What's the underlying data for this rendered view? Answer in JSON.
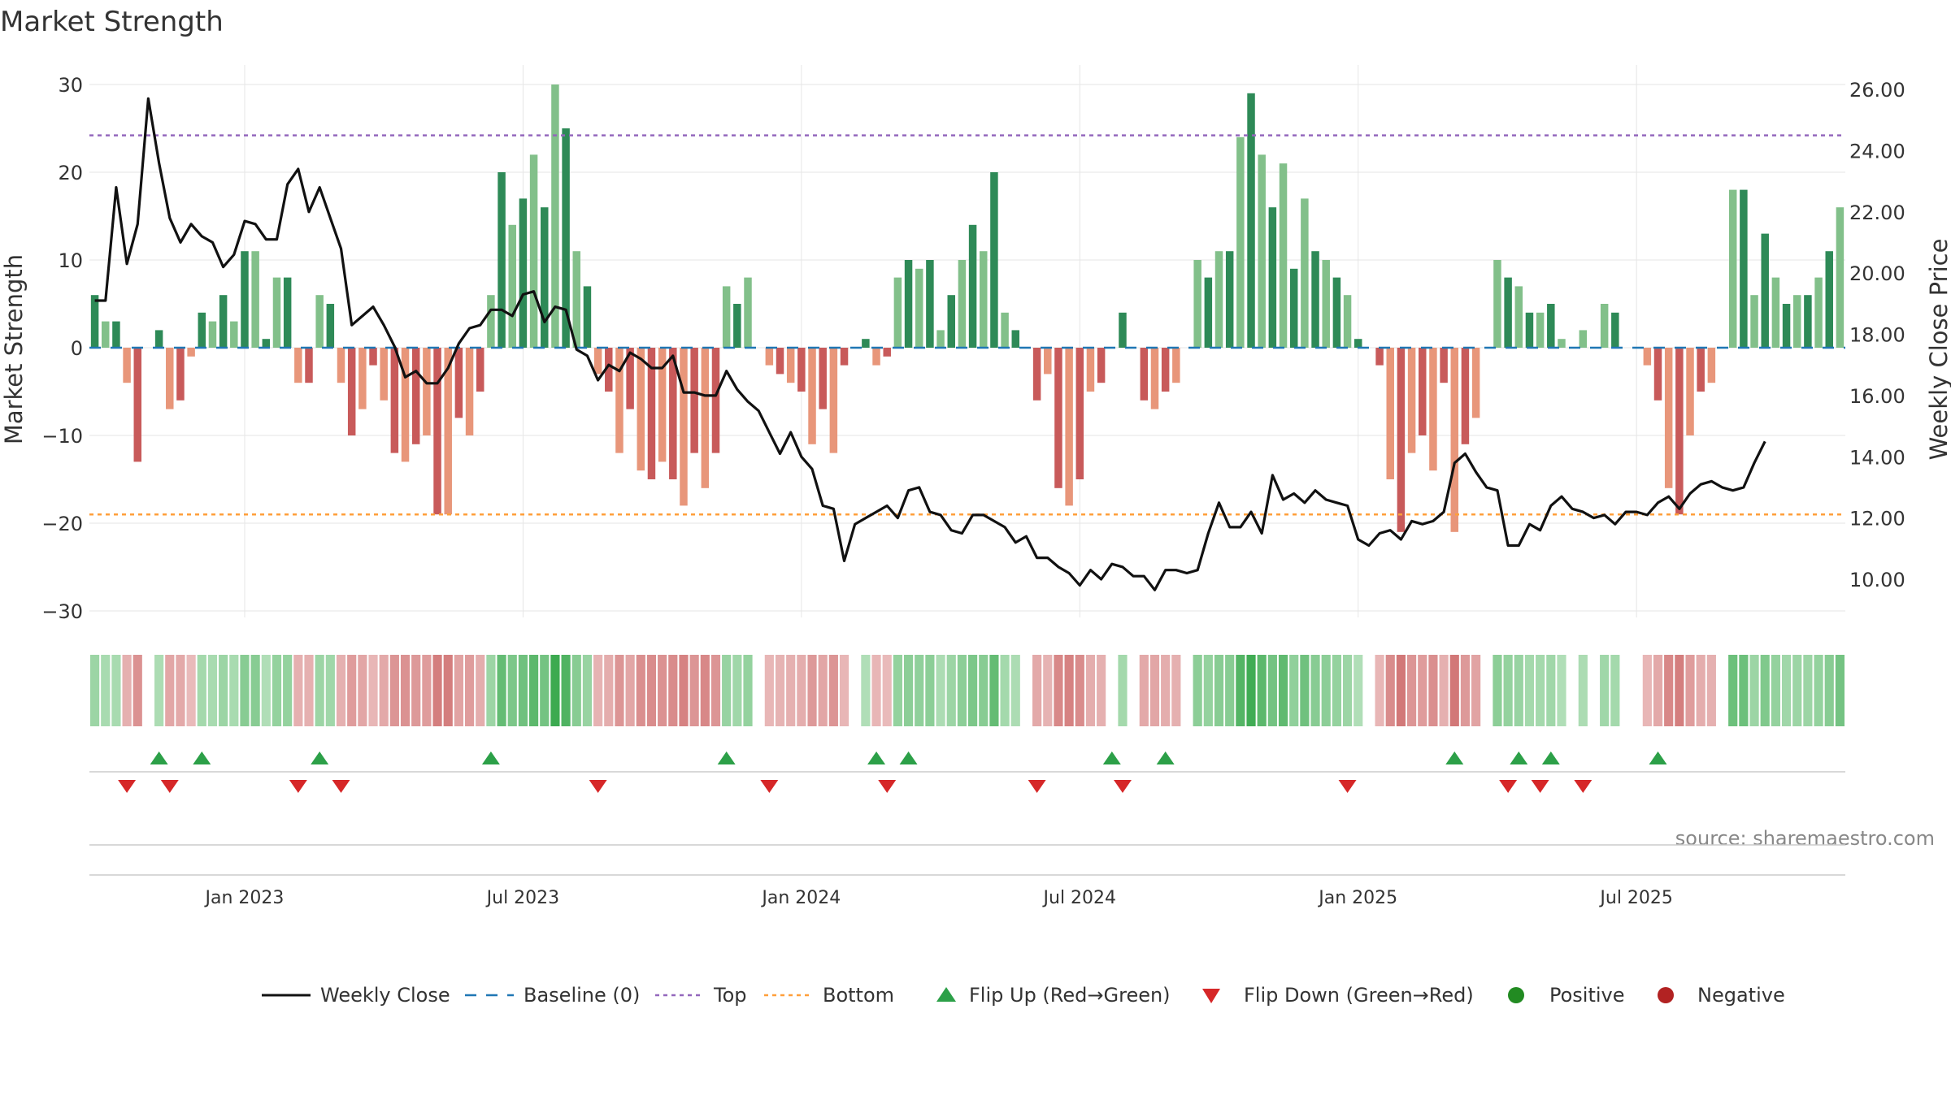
{
  "chart_data": {
    "type": "bar",
    "title": "Market Strength",
    "ylabel": "Market Strength",
    "y2label": "Weekly Close Price",
    "ylim": [
      -32,
      32
    ],
    "y2lim": [
      8.95,
      26.45
    ],
    "yticks": [
      -30,
      -20,
      -10,
      0,
      10,
      20,
      30
    ],
    "ytick_labels": [
      "−30",
      "−20",
      "−10",
      "0",
      "10",
      "20",
      "30"
    ],
    "y2ticks": [
      10,
      12,
      14,
      16,
      18,
      20,
      22,
      24,
      26
    ],
    "y2tick_labels": [
      "10.00",
      "12.00",
      "14.00",
      "16.00",
      "18.00",
      "20.00",
      "22.00",
      "24.00",
      "26.00"
    ],
    "top_level": 24.2,
    "bottom_level": -19,
    "xticks": [
      {
        "week": 14,
        "label": "Jan 2023"
      },
      {
        "week": 40,
        "label": "Jul 2023"
      },
      {
        "week": 66,
        "label": "Jan 2024"
      },
      {
        "week": 92,
        "label": "Jul 2024"
      },
      {
        "week": 118,
        "label": "Jan 2025"
      },
      {
        "week": 144,
        "label": "Jul 2025"
      }
    ],
    "strength": [
      6,
      3,
      3,
      -4,
      -13,
      0,
      2,
      -7,
      -6,
      -1,
      4,
      3,
      6,
      3,
      11,
      11,
      1,
      8,
      8,
      -4,
      -4,
      6,
      5,
      -4,
      -10,
      -7,
      -2,
      -6,
      -12,
      -13,
      -11,
      -10,
      -19,
      -19,
      -8,
      -10,
      -5,
      6,
      20,
      14,
      17,
      22,
      16,
      30,
      25,
      11,
      7,
      -3,
      -5,
      -12,
      -7,
      -14,
      -15,
      -13,
      -15,
      -18,
      -12,
      -16,
      -12,
      7,
      5,
      8,
      0,
      -2,
      -3,
      -4,
      -5,
      -11,
      -7,
      -12,
      -2,
      0,
      1,
      -2,
      -1,
      8,
      10,
      9,
      10,
      2,
      6,
      10,
      14,
      11,
      20,
      4,
      2,
      0,
      -6,
      -3,
      -16,
      -18,
      -15,
      -5,
      -4,
      0,
      4,
      0,
      -6,
      -7,
      -5,
      -4,
      0,
      10,
      8,
      11,
      11,
      24,
      29,
      22,
      16,
      21,
      9,
      17,
      11,
      10,
      8,
      6,
      1,
      0,
      -2,
      -15,
      -21,
      -12,
      -10,
      -14,
      -4,
      -21,
      -11,
      -8,
      0,
      10,
      8,
      7,
      4,
      4,
      5,
      1,
      0,
      2,
      0,
      5,
      4,
      0,
      0,
      -2,
      -6,
      -16,
      -19,
      -10,
      -5,
      -4,
      0,
      18,
      18,
      6,
      13,
      8,
      5,
      6,
      6,
      8,
      11,
      16
    ],
    "close": [
      19.1,
      19.1,
      22.8,
      20.3,
      21.6,
      25.7,
      23.6,
      21.8,
      21.0,
      21.6,
      21.2,
      21.0,
      20.2,
      20.6,
      21.7,
      21.6,
      21.1,
      21.1,
      22.9,
      23.4,
      22.0,
      22.8,
      21.8,
      20.8,
      18.3,
      18.6,
      18.9,
      18.3,
      17.6,
      16.6,
      16.8,
      16.4,
      16.4,
      16.9,
      17.7,
      18.2,
      18.3,
      18.8,
      18.8,
      18.6,
      19.3,
      19.4,
      18.4,
      18.9,
      18.8,
      17.5,
      17.3,
      16.5,
      17.0,
      16.8,
      17.4,
      17.2,
      16.9,
      16.9,
      17.3,
      16.1,
      16.1,
      16.0,
      16.0,
      16.8,
      16.2,
      15.8,
      15.5,
      14.8,
      14.1,
      14.8,
      14.0,
      13.6,
      12.4,
      12.3,
      10.6,
      11.8,
      12.0,
      12.2,
      12.4,
      12.0,
      12.9,
      13.0,
      12.2,
      12.1,
      11.6,
      11.5,
      12.1,
      12.1,
      11.9,
      11.7,
      11.2,
      11.4,
      10.7,
      10.7,
      10.4,
      10.2,
      9.8,
      10.3,
      10.0,
      10.5,
      10.4,
      10.1,
      10.1,
      9.65,
      10.3,
      10.3,
      10.2,
      10.3,
      11.5,
      12.5,
      11.7,
      11.7,
      12.2,
      11.5,
      13.4,
      12.6,
      12.8,
      12.5,
      12.9,
      12.6,
      12.5,
      12.4,
      11.3,
      11.1,
      11.5,
      11.6,
      11.3,
      11.9,
      11.8,
      11.9,
      12.2,
      13.8,
      14.1,
      13.5,
      13.0,
      12.9,
      11.1,
      11.1,
      11.8,
      11.6,
      12.4,
      12.7,
      12.3,
      12.2,
      12.0,
      12.1,
      11.8,
      12.2,
      12.2,
      12.1,
      12.5,
      12.7,
      12.3,
      12.8,
      13.1,
      13.2,
      13.0,
      12.9,
      13.0,
      13.8,
      14.5
    ],
    "flip_up_weeks": [
      6,
      10,
      21,
      37,
      59,
      73,
      76,
      95,
      100,
      127,
      133,
      136,
      146
    ],
    "flip_down_weeks": [
      3,
      7,
      19,
      23,
      47,
      63,
      74,
      88,
      96,
      117,
      132,
      135,
      139
    ],
    "legend": [
      {
        "key": "close",
        "label": "Weekly Close"
      },
      {
        "key": "baseline",
        "label": "Baseline (0)"
      },
      {
        "key": "top",
        "label": "Top"
      },
      {
        "key": "bottom",
        "label": "Bottom"
      },
      {
        "key": "flipup",
        "label": "Flip Up (Red→Green)"
      },
      {
        "key": "flipdown",
        "label": "Flip Down (Green→Red)"
      },
      {
        "key": "positive",
        "label": "Positive"
      },
      {
        "key": "negative",
        "label": "Negative"
      }
    ],
    "source": "source: sharemaestro.com",
    "colors": {
      "pos_strong": "#2e8a57",
      "pos_light": "#82c08a",
      "neg_strong": "#c85a5a",
      "neg_light": "#e8967a",
      "close_line": "#111111",
      "baseline": "#1f77b4",
      "top": "#9467bd",
      "bottom": "#ff9f3a",
      "flip_up": "#2ca048",
      "flip_down": "#d62728",
      "positive_dot": "#228b22",
      "negative_dot": "#b22222",
      "grid": "#e6e6e6"
    }
  }
}
